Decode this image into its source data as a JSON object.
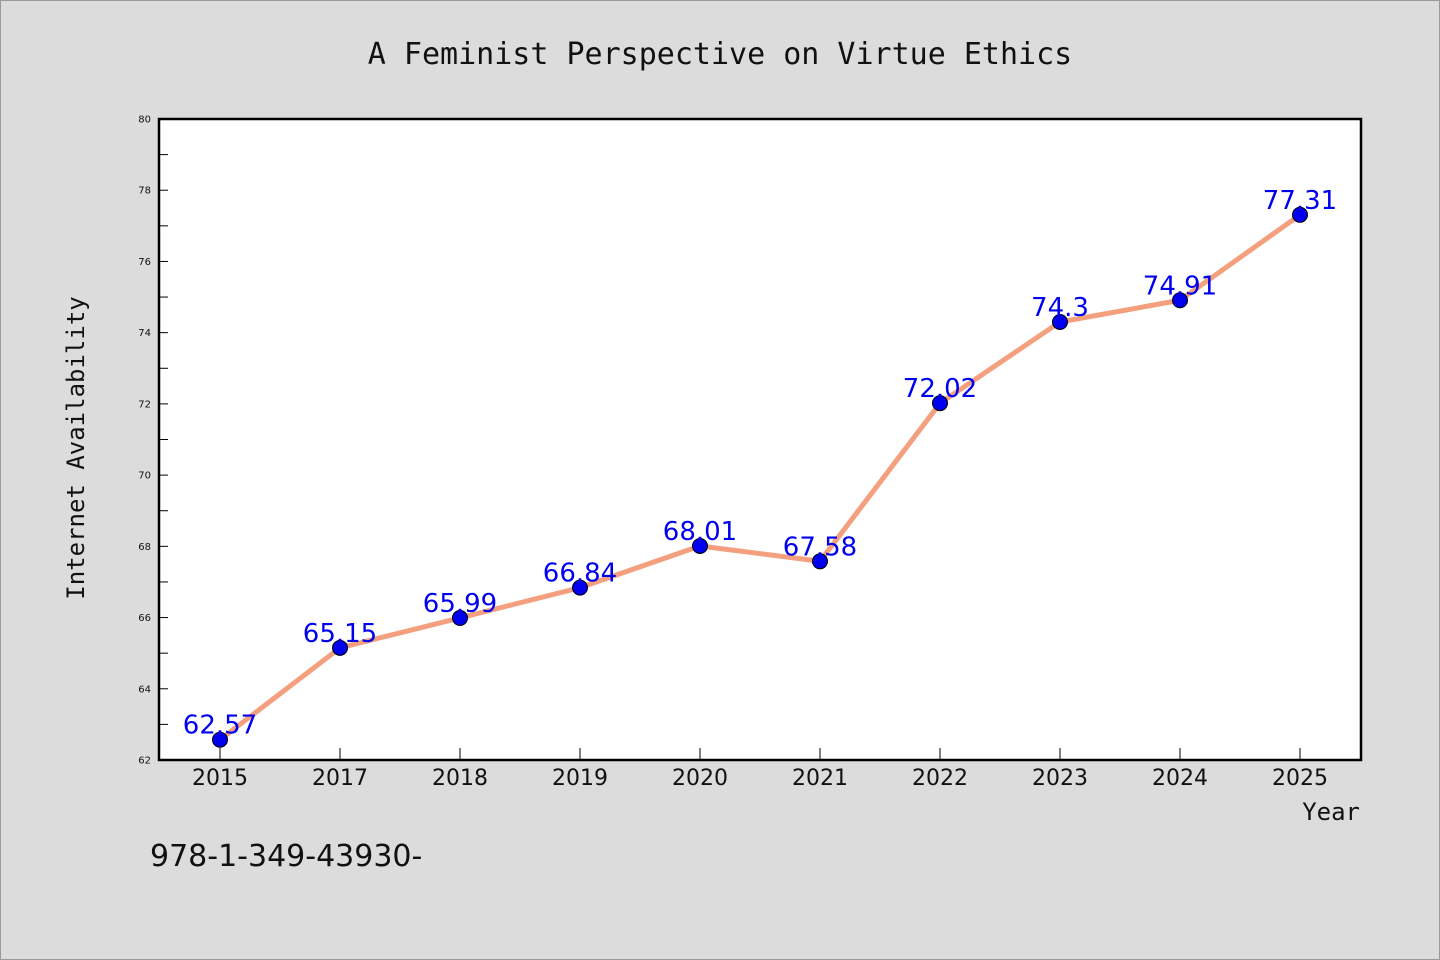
{
  "chart_data": {
    "type": "line",
    "title": "A Feminist Perspective on Virtue Ethics",
    "xlabel": "Year",
    "ylabel": "Internet Availability",
    "categories": [
      "2015",
      "2017",
      "2018",
      "2019",
      "2020",
      "2021",
      "2022",
      "2023",
      "2024",
      "2025"
    ],
    "series": [
      {
        "values": [
          62.57,
          65.15,
          65.99,
          66.84,
          68.01,
          67.58,
          72.02,
          74.3,
          74.91,
          77.31
        ],
        "data_labels": [
          "62.57",
          "65.15",
          "65.99",
          "66.84",
          "68.01",
          "67.58",
          "72.02",
          "74.3",
          "74.91",
          "77.31"
        ],
        "line_color": "#f4a07e",
        "marker_color": "#0000ee"
      }
    ],
    "ylim": [
      62,
      80
    ],
    "yticks": [
      "62",
      "64",
      "66",
      "68",
      "70",
      "72",
      "74",
      "76",
      "78",
      "80"
    ],
    "grid": false,
    "legend": "none"
  },
  "annotation": "978-1-349-43930-"
}
